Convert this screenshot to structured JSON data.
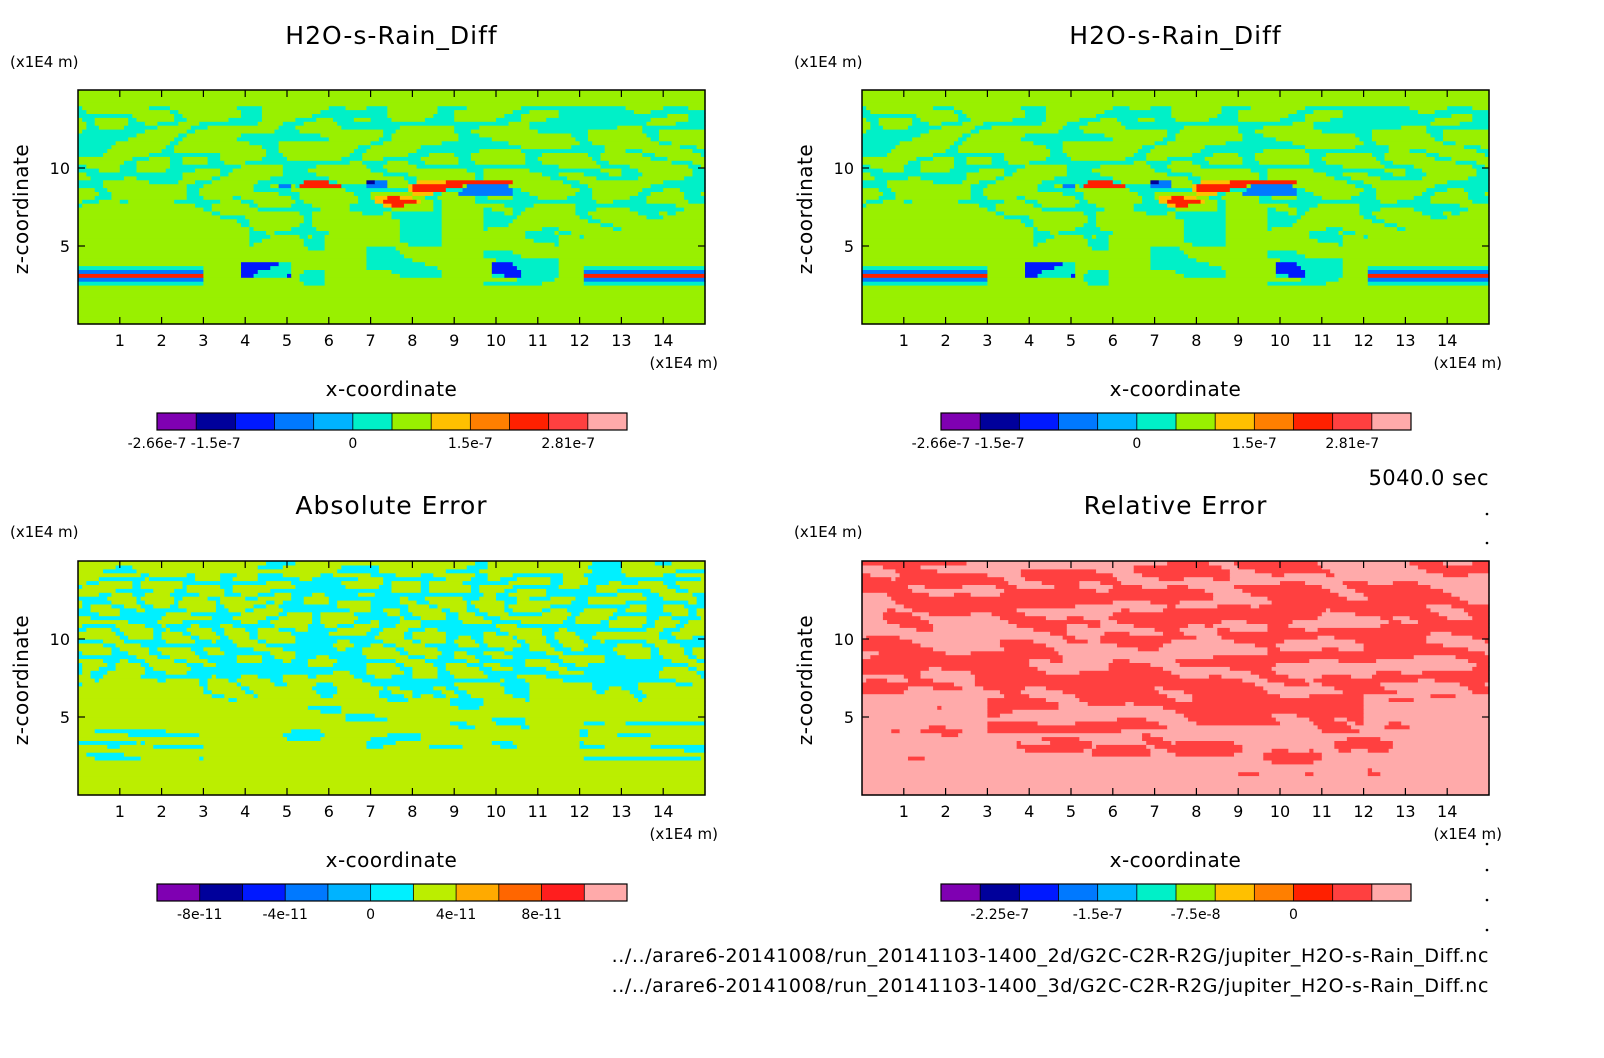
{
  "time_label": "5040.0 sec",
  "file_paths": [
    "../../arare6-20141008/run_20141103-1400_2d/G2C-C2R-R2G/jupiter_H2O-s-Rain_Diff.nc",
    "../../arare6-20141008/run_20141103-1400_3d/G2C-C2R-R2G/jupiter_H2O-s-Rain_Diff.nc"
  ],
  "chart_data": [
    {
      "type": "heatmap",
      "title": "H2O-s-Rain_Diff",
      "xlabel": "x-coordinate",
      "ylabel": "z-coordinate",
      "x_unit": "(x1E4 m)",
      "y_unit": "(x1E4 m)",
      "xlim": [
        0,
        15
      ],
      "ylim": [
        0,
        15
      ],
      "x_ticks": [
        "1",
        "2",
        "3",
        "4",
        "5",
        "6",
        "7",
        "8",
        "9",
        "10",
        "11",
        "12",
        "13",
        "14"
      ],
      "y_ticks": [
        "5",
        "10"
      ],
      "colorbar_colors": [
        "#7f00b2",
        "#00009b",
        "#0019ff",
        "#0079ff",
        "#00b3ff",
        "#00f0c8",
        "#99f000",
        "#ffc000",
        "#ff7f00",
        "#ff2000",
        "#ff4040",
        "#ffaaaa"
      ],
      "colorbar_labels": [
        "-2.66e-7",
        "-1.5e-7",
        "0",
        "1.5e-7",
        "2.81e-7"
      ],
      "colorbar_label_positions": [
        0,
        1.5,
        5,
        8,
        10.5
      ],
      "colorbar_range": [
        -2.66e-07,
        2.81e-07
      ],
      "pattern": "diff",
      "seed": 11
    },
    {
      "type": "heatmap",
      "title": "H2O-s-Rain_Diff",
      "xlabel": "x-coordinate",
      "ylabel": "z-coordinate",
      "x_unit": "(x1E4 m)",
      "y_unit": "(x1E4 m)",
      "xlim": [
        0,
        15
      ],
      "ylim": [
        0,
        15
      ],
      "x_ticks": [
        "1",
        "2",
        "3",
        "4",
        "5",
        "6",
        "7",
        "8",
        "9",
        "10",
        "11",
        "12",
        "13",
        "14"
      ],
      "y_ticks": [
        "5",
        "10"
      ],
      "colorbar_colors": [
        "#7f00b2",
        "#00009b",
        "#0019ff",
        "#0079ff",
        "#00b3ff",
        "#00f0c8",
        "#99f000",
        "#ffc000",
        "#ff7f00",
        "#ff2000",
        "#ff4040",
        "#ffaaaa"
      ],
      "colorbar_labels": [
        "-2.66e-7",
        "-1.5e-7",
        "0",
        "1.5e-7",
        "2.81e-7"
      ],
      "colorbar_label_positions": [
        0,
        1.5,
        5,
        8,
        10.5
      ],
      "colorbar_range": [
        -2.66e-07,
        2.81e-07
      ],
      "pattern": "diff",
      "seed": 11
    },
    {
      "type": "heatmap",
      "title": "Absolute Error",
      "xlabel": "x-coordinate",
      "ylabel": "z-coordinate",
      "x_unit": "(x1E4 m)",
      "y_unit": "(x1E4 m)",
      "xlim": [
        0,
        15
      ],
      "ylim": [
        0,
        15
      ],
      "x_ticks": [
        "1",
        "2",
        "3",
        "4",
        "5",
        "6",
        "7",
        "8",
        "9",
        "10",
        "11",
        "12",
        "13",
        "14"
      ],
      "y_ticks": [
        "5",
        "10"
      ],
      "colorbar_colors": [
        "#7f00b2",
        "#00009b",
        "#0019ff",
        "#0079ff",
        "#00b3ff",
        "#00f0ff",
        "#bbee00",
        "#ffaa00",
        "#ff6600",
        "#ff1e1e",
        "#ffaaaa"
      ],
      "colorbar_labels": [
        "-8e-11",
        "-4e-11",
        "0",
        "4e-11",
        "8e-11"
      ],
      "colorbar_label_positions": [
        1,
        3,
        5,
        7,
        9
      ],
      "pattern": "abs",
      "seed": 29
    },
    {
      "type": "heatmap",
      "title": "Relative Error",
      "xlabel": "x-coordinate",
      "ylabel": "z-coordinate",
      "x_unit": "(x1E4 m)",
      "y_unit": "(x1E4 m)",
      "xlim": [
        0,
        15
      ],
      "ylim": [
        0,
        15
      ],
      "x_ticks": [
        "1",
        "2",
        "3",
        "4",
        "5",
        "6",
        "7",
        "8",
        "9",
        "10",
        "11",
        "12",
        "13",
        "14"
      ],
      "y_ticks": [
        "5",
        "10"
      ],
      "colorbar_colors": [
        "#7f00b2",
        "#00009b",
        "#0019ff",
        "#0079ff",
        "#00b3ff",
        "#00f0c8",
        "#99f000",
        "#ffc000",
        "#ff7f00",
        "#ff2000",
        "#ff4040",
        "#ffaaaa"
      ],
      "colorbar_labels": [
        "-2.25e-7",
        "-1.5e-7",
        "-7.5e-8",
        "0"
      ],
      "colorbar_label_positions": [
        1.5,
        4,
        6.5,
        9
      ],
      "pattern": "rel",
      "seed": 47
    }
  ]
}
